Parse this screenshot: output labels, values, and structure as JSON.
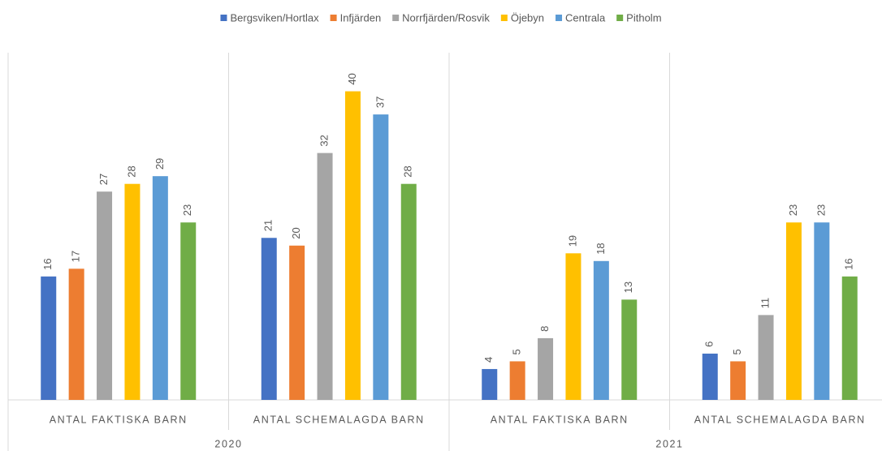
{
  "chart_data": {
    "type": "bar",
    "groups": [
      {
        "name": "2020",
        "categories": [
          "ANTAL FAKTISKA BARN",
          "ANTAL SCHEMALAGDA BARN"
        ]
      },
      {
        "name": "2021",
        "categories": [
          "ANTAL FAKTISKA BARN",
          "ANTAL SCHEMALAGDA BARN"
        ]
      }
    ],
    "series": [
      {
        "name": "Bergsviken/Hortlax",
        "color": "#4472c4",
        "values": [
          16,
          21,
          4,
          6
        ]
      },
      {
        "name": "Infjärden",
        "color": "#ed7d31",
        "values": [
          17,
          20,
          5,
          5
        ]
      },
      {
        "name": "Norrfjärden/Rosvik",
        "color": "#a5a5a5",
        "values": [
          27,
          32,
          8,
          11
        ]
      },
      {
        "name": "Öjebyn",
        "color": "#ffc000",
        "values": [
          28,
          40,
          19,
          23
        ]
      },
      {
        "name": "Centrala",
        "color": "#5b9bd5",
        "values": [
          29,
          37,
          18,
          23
        ]
      },
      {
        "name": "Pitholm",
        "color": "#70ad47",
        "values": [
          23,
          28,
          13,
          16
        ]
      }
    ],
    "ylim": [
      0,
      45
    ],
    "legend": "top"
  }
}
